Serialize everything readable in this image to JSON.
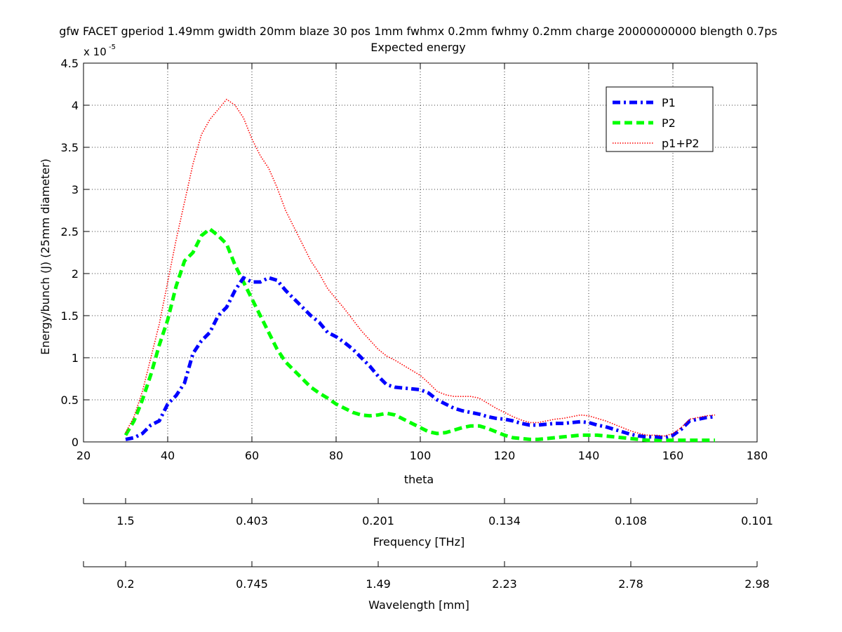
{
  "figure": {
    "title_line1": "gfw FACET gperiod 1.49mm gwidth 20mm blaze 30 pos 1mm fwhmx 0.2mm fwhmy 0.2mm charge 20000000000 blength 0.7ps",
    "title_line2": "Expected energy",
    "y_multiplier_base": "x 10",
    "y_multiplier_exp": "-5"
  },
  "chart_data": [
    {
      "type": "line",
      "title": "Expected energy",
      "xlabel": "theta",
      "ylabel": "Energy/bunch (J)  (25mm diameter)",
      "y_scale_factor": 1e-05,
      "xlim": [
        20,
        180
      ],
      "ylim": [
        0,
        4.5
      ],
      "x_ticks": [
        20,
        40,
        60,
        80,
        100,
        120,
        140,
        160,
        180
      ],
      "y_ticks": [
        0,
        0.5,
        1,
        1.5,
        2,
        2.5,
        3,
        3.5,
        4,
        4.5
      ],
      "x_tick_labels": [
        "20",
        "40",
        "60",
        "80",
        "100",
        "120",
        "140",
        "160",
        "180"
      ],
      "y_tick_labels": [
        "0",
        "0.5",
        "1",
        "1.5",
        "2",
        "2.5",
        "3",
        "3.5",
        "4",
        "4.5"
      ],
      "grid": true,
      "legend_position": "top-right",
      "series": [
        {
          "name": "P1",
          "color": "#0000ff",
          "style": "dash-dot",
          "x": [
            30,
            32,
            34,
            36,
            38,
            40,
            42,
            44,
            46,
            48,
            50,
            52,
            54,
            56,
            58,
            60,
            62,
            64,
            66,
            68,
            70,
            72,
            74,
            76,
            78,
            80,
            82,
            84,
            86,
            88,
            90,
            92,
            94,
            96,
            98,
            100,
            102,
            104,
            106,
            108,
            110,
            112,
            114,
            116,
            118,
            120,
            122,
            124,
            126,
            128,
            130,
            132,
            134,
            136,
            138,
            140,
            142,
            144,
            146,
            148,
            150,
            152,
            154,
            156,
            158,
            160,
            162,
            164,
            166,
            168,
            170
          ],
          "y": [
            0.03,
            0.05,
            0.1,
            0.2,
            0.25,
            0.45,
            0.55,
            0.7,
            1.05,
            1.2,
            1.3,
            1.5,
            1.6,
            1.8,
            1.95,
            1.9,
            1.9,
            1.95,
            1.92,
            1.8,
            1.7,
            1.6,
            1.5,
            1.42,
            1.3,
            1.25,
            1.18,
            1.1,
            1.0,
            0.9,
            0.78,
            0.68,
            0.65,
            0.64,
            0.63,
            0.62,
            0.58,
            0.5,
            0.45,
            0.4,
            0.37,
            0.35,
            0.33,
            0.3,
            0.28,
            0.27,
            0.25,
            0.22,
            0.2,
            0.2,
            0.21,
            0.22,
            0.22,
            0.23,
            0.24,
            0.23,
            0.2,
            0.18,
            0.15,
            0.12,
            0.09,
            0.07,
            0.06,
            0.06,
            0.05,
            0.08,
            0.15,
            0.25,
            0.27,
            0.29,
            0.3
          ]
        },
        {
          "name": "P2",
          "color": "#00ff00",
          "style": "dashed",
          "x": [
            30,
            32,
            34,
            36,
            38,
            40,
            42,
            44,
            46,
            48,
            50,
            52,
            54,
            56,
            58,
            60,
            62,
            64,
            66,
            68,
            70,
            72,
            74,
            76,
            78,
            80,
            82,
            84,
            86,
            88,
            90,
            92,
            94,
            96,
            98,
            100,
            102,
            104,
            106,
            108,
            110,
            112,
            114,
            116,
            118,
            120,
            122,
            124,
            126,
            128,
            130,
            132,
            134,
            136,
            138,
            140,
            142,
            144,
            146,
            148,
            150,
            152,
            154,
            156,
            158,
            160,
            162,
            164,
            166,
            168,
            170
          ],
          "y": [
            0.08,
            0.25,
            0.5,
            0.8,
            1.15,
            1.45,
            1.85,
            2.15,
            2.25,
            2.45,
            2.53,
            2.45,
            2.35,
            2.1,
            1.9,
            1.7,
            1.5,
            1.3,
            1.1,
            0.95,
            0.85,
            0.75,
            0.65,
            0.58,
            0.52,
            0.45,
            0.4,
            0.35,
            0.32,
            0.31,
            0.32,
            0.34,
            0.32,
            0.27,
            0.22,
            0.17,
            0.12,
            0.1,
            0.11,
            0.14,
            0.17,
            0.19,
            0.19,
            0.16,
            0.12,
            0.08,
            0.05,
            0.04,
            0.03,
            0.03,
            0.04,
            0.05,
            0.06,
            0.07,
            0.08,
            0.08,
            0.08,
            0.07,
            0.06,
            0.05,
            0.04,
            0.03,
            0.02,
            0.02,
            0.02,
            0.02,
            0.02,
            0.02,
            0.02,
            0.02,
            0.02
          ]
        },
        {
          "name": "p1+P2",
          "color": "#ff0000",
          "style": "dotted",
          "x": [
            30,
            32,
            34,
            36,
            38,
            40,
            42,
            44,
            46,
            48,
            50,
            52,
            54,
            56,
            58,
            60,
            62,
            64,
            66,
            68,
            70,
            72,
            74,
            76,
            78,
            80,
            82,
            84,
            86,
            88,
            90,
            92,
            94,
            96,
            98,
            100,
            102,
            104,
            106,
            108,
            110,
            112,
            114,
            116,
            118,
            120,
            122,
            124,
            126,
            128,
            130,
            132,
            134,
            136,
            138,
            140,
            142,
            144,
            146,
            148,
            150,
            152,
            154,
            156,
            158,
            160,
            162,
            164,
            166,
            168,
            170
          ],
          "y": [
            0.11,
            0.3,
            0.6,
            1.0,
            1.4,
            1.9,
            2.4,
            2.85,
            3.3,
            3.65,
            3.83,
            3.95,
            4.07,
            4.0,
            3.85,
            3.6,
            3.4,
            3.25,
            3.02,
            2.75,
            2.55,
            2.35,
            2.15,
            2.0,
            1.82,
            1.7,
            1.58,
            1.45,
            1.32,
            1.21,
            1.1,
            1.02,
            0.97,
            0.91,
            0.85,
            0.79,
            0.7,
            0.6,
            0.56,
            0.54,
            0.54,
            0.54,
            0.52,
            0.46,
            0.4,
            0.35,
            0.3,
            0.26,
            0.23,
            0.23,
            0.25,
            0.27,
            0.28,
            0.3,
            0.32,
            0.31,
            0.28,
            0.25,
            0.21,
            0.17,
            0.13,
            0.1,
            0.08,
            0.08,
            0.07,
            0.1,
            0.17,
            0.27,
            0.29,
            0.31,
            0.32
          ]
        }
      ]
    },
    {
      "type": "axis",
      "xlabel": "Frequency [THz]",
      "tick_labels": [
        "1.5",
        "0.403",
        "0.201",
        "0.134",
        "0.108",
        "0.101"
      ],
      "tick_theta": [
        30,
        60,
        90,
        120,
        150,
        180
      ]
    },
    {
      "type": "axis",
      "xlabel": "Wavelength [mm]",
      "tick_labels": [
        "0.2",
        "0.745",
        "1.49",
        "2.23",
        "2.78",
        "2.98"
      ],
      "tick_theta": [
        30,
        60,
        90,
        120,
        150,
        180
      ]
    }
  ]
}
